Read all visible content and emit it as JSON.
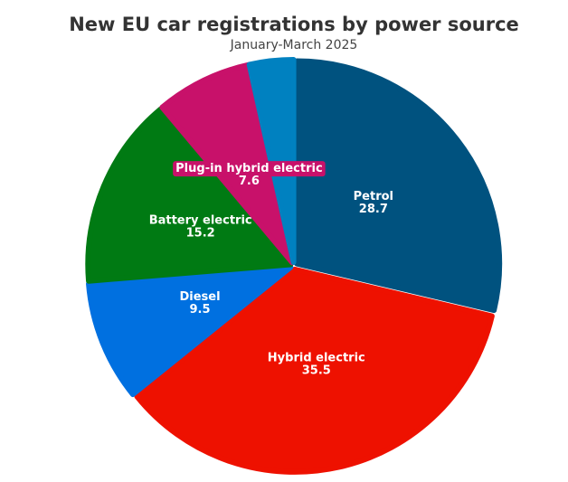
{
  "chart_data": {
    "type": "pie",
    "title": "New EU car registrations by power source",
    "subtitle": "January-March 2025",
    "categories": [
      "Petrol",
      "Hybrid electric",
      "Diesel",
      "Battery electric",
      "Plug-in hybrid electric",
      null
    ],
    "values": [
      28.7,
      35.5,
      9.5,
      15.2,
      7.6,
      3.5
    ],
    "colors": [
      "#00527f",
      "#ee1100",
      "#0070e0",
      "#007a13",
      "#c8116a",
      "#0081c0"
    ],
    "legend": false
  }
}
